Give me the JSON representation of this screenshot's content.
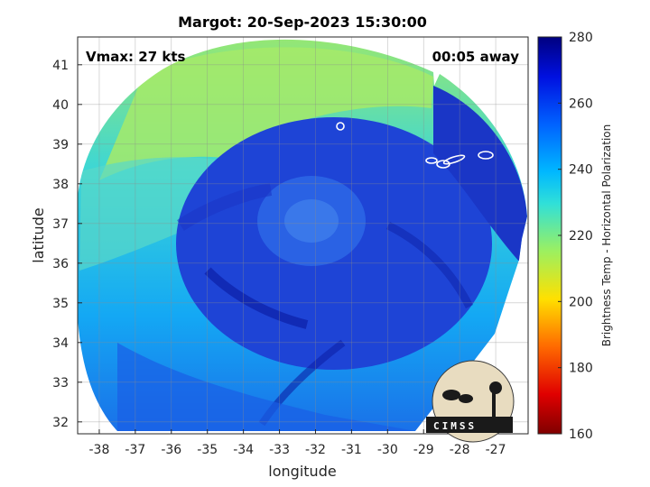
{
  "chart_data": {
    "type": "heatmap",
    "title": "Margot: 20-Sep-2023 15:30:00",
    "xlabel": "longitude",
    "ylabel": "latitude",
    "xlim": [
      -38.6,
      -26.1
    ],
    "ylim": [
      31.7,
      41.7
    ],
    "x_ticks": [
      -38,
      -37,
      -36,
      -35,
      -34,
      -33,
      -32,
      -31,
      -30,
      -29,
      -28,
      -27
    ],
    "y_ticks": [
      32,
      33,
      34,
      35,
      36,
      37,
      38,
      39,
      40,
      41
    ],
    "grid": true,
    "annotations": {
      "vmax": "Vmax: 27 kts",
      "time_offset": "00:05 away"
    },
    "colorbar": {
      "label": "Brightness Temp - Horizontal Polarization",
      "range": [
        160,
        280
      ],
      "ticks": [
        160,
        180,
        200,
        220,
        240,
        260,
        280
      ],
      "colormap": "jet"
    },
    "logo": {
      "text": "CIMSS"
    }
  },
  "colors": {
    "swath_outer": "#1ec8f0",
    "swath_warm_region": "#a8ec6a",
    "core_blue": "#1f45d8",
    "deep_blue": "#0c1fa6",
    "contour": "#ffffff"
  }
}
